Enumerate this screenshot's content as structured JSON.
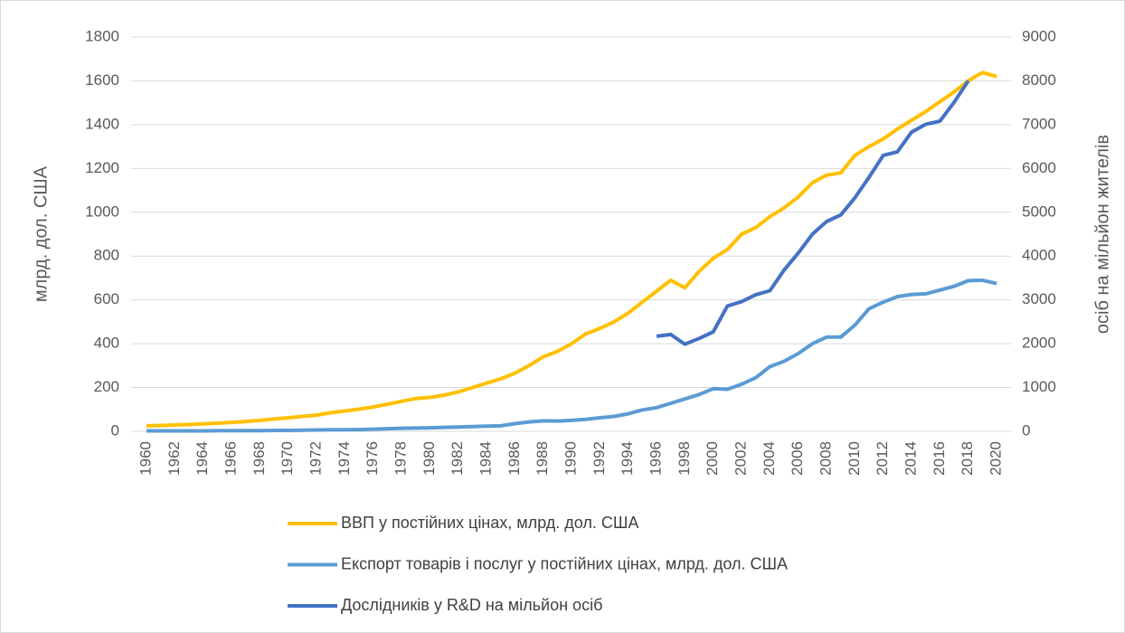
{
  "chart_data": {
    "type": "line",
    "categories": [
      "1960",
      null,
      "1962",
      null,
      "1964",
      null,
      "1966",
      null,
      "1968",
      null,
      "1970",
      null,
      "1972",
      null,
      "1974",
      null,
      "1976",
      null,
      "1978",
      null,
      "1980",
      null,
      "1982",
      null,
      "1984",
      null,
      "1986",
      null,
      "1988",
      null,
      "1990",
      null,
      "1992",
      null,
      "1994",
      null,
      "1996",
      null,
      "1998",
      null,
      "2000",
      null,
      "2002",
      null,
      "2004",
      null,
      "2006",
      null,
      "2008",
      null,
      "2010",
      null,
      "2012",
      null,
      "2014",
      null,
      "2016",
      null,
      "2018",
      null,
      "2020"
    ],
    "ylabel": "млрд. дол. США",
    "y2label": "осіб на мільйон жителів",
    "ylim": [
      0,
      1800
    ],
    "yticks": [
      0,
      200,
      400,
      600,
      800,
      1000,
      1200,
      1400,
      1600,
      1800
    ],
    "y2lim": [
      0,
      9000
    ],
    "y2ticks": [
      0,
      1000,
      2000,
      3000,
      4000,
      5000,
      6000,
      7000,
      8000,
      9000
    ],
    "grid": true,
    "legend": "bottom",
    "series": [
      {
        "name": "ВВП у постійних цінах, млрд. дол. США",
        "color": "#ffc000",
        "values": [
          25,
          27,
          29,
          31,
          34,
          37,
          41,
          45,
          50,
          56,
          62,
          68,
          74,
          85,
          93,
          101,
          111,
          124,
          137,
          150,
          155,
          165,
          180,
          200,
          220,
          240,
          265,
          300,
          340,
          365,
          400,
          445,
          470,
          500,
          540,
          590,
          640,
          690,
          655,
          730,
          790,
          830,
          900,
          930,
          980,
          1020,
          1070,
          1135,
          1170,
          1180,
          1260,
          1300,
          1335,
          1380,
          1420,
          1460,
          1505,
          1550,
          1600,
          1638,
          1620
        ]
      },
      {
        "name": "Експорт товарів і послуг у постійних цінах, млрд. дол. США",
        "color": "#5b9bd5",
        "values": [
          2,
          2,
          2,
          2,
          2,
          3,
          3,
          3,
          3,
          4,
          4,
          5,
          6,
          7,
          7,
          8,
          10,
          12,
          14,
          15,
          16,
          18,
          20,
          22,
          24,
          25,
          35,
          43,
          48,
          47,
          50,
          55,
          62,
          68,
          80,
          98,
          108,
          128,
          148,
          168,
          195,
          192,
          215,
          245,
          295,
          320,
          355,
          400,
          430,
          430,
          485,
          560,
          590,
          615,
          625,
          628,
          645,
          662,
          688,
          690,
          675
        ]
      },
      {
        "name": "Дослідників у R&D  на мільйон осіб",
        "color": "#4472c4",
        "axis": "y2",
        "values": [
          null,
          null,
          null,
          null,
          null,
          null,
          null,
          null,
          null,
          null,
          null,
          null,
          null,
          null,
          null,
          null,
          null,
          null,
          null,
          null,
          null,
          null,
          null,
          null,
          null,
          null,
          null,
          null,
          null,
          null,
          null,
          null,
          null,
          null,
          null,
          null,
          2170,
          2210,
          1990,
          2120,
          2270,
          2860,
          2960,
          3120,
          3210,
          3680,
          4070,
          4500,
          4790,
          4940,
          5330,
          5800,
          6300,
          6380,
          6830,
          7010,
          7080,
          7510,
          8000,
          null,
          null
        ]
      }
    ]
  }
}
